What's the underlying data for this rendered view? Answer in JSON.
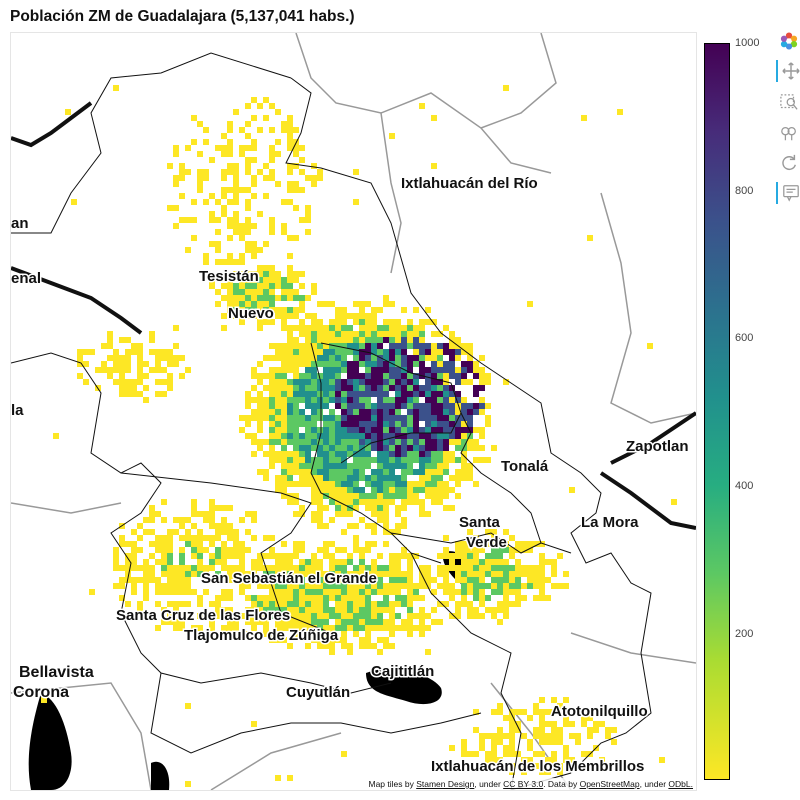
{
  "title": "Población ZM de Guadalajara (5,137,041 habs.)",
  "places": [
    {
      "id": "ixtlahuacan-del-rio",
      "label": "Ixtlahuacán del Río"
    },
    {
      "id": "zapotlan",
      "label": "Zapotlan"
    },
    {
      "id": "tesistan",
      "label": "Tesistán"
    },
    {
      "id": "nuevo",
      "label": "Nuevo"
    },
    {
      "id": "san-sebastian",
      "label": "San Sebastián el Grande"
    },
    {
      "id": "santa-cruz",
      "label": "Santa Cruz de las Flores"
    },
    {
      "id": "tlajomulco",
      "label": "Tlajomulco de Zúñiga"
    },
    {
      "id": "bellavista",
      "label": "Bellavista"
    },
    {
      "id": "corona",
      "label": "Corona"
    },
    {
      "id": "cuyutlan",
      "label": "Cuyutlán"
    },
    {
      "id": "cajititlan",
      "label": "Cajititlán"
    },
    {
      "id": "atotonilquillo",
      "label": "Atotonilquillo"
    },
    {
      "id": "ixtlahuacan-membrillos",
      "label": "Ixtlahuacán de los Membrillos"
    },
    {
      "id": "tonala",
      "label": "Tonalá"
    },
    {
      "id": "la-mora",
      "label": "La Mora"
    },
    {
      "id": "cerro-verde",
      "label": "Verde"
    },
    {
      "id": "santa-anita",
      "label": "Santa"
    },
    {
      "id": "left-an",
      "label": "an"
    },
    {
      "id": "left-enal",
      "label": "enal"
    },
    {
      "id": "left-la",
      "label": "la"
    }
  ],
  "colorbar": {
    "ticks": [
      "1000",
      "800",
      "600",
      "400",
      "200"
    ],
    "palette": "viridis",
    "colors": [
      "#440154",
      "#3b518b",
      "#21908d",
      "#5cc863",
      "#fde725"
    ]
  },
  "attribution": {
    "prefix": "Map tiles by ",
    "stamen": "Stamen Design",
    "under1": ", under ",
    "ccby": "CC BY 3.0",
    "data": ". Data by ",
    "osm": "OpenStreetMap",
    "under2": ", under ",
    "odbl": "ODbL."
  },
  "toolbar": {
    "tools": [
      "bokeh-logo-icon",
      "pan-icon",
      "box-zoom-icon",
      "wheel-zoom-icon",
      "reset-icon",
      "hover-icon"
    ]
  }
}
